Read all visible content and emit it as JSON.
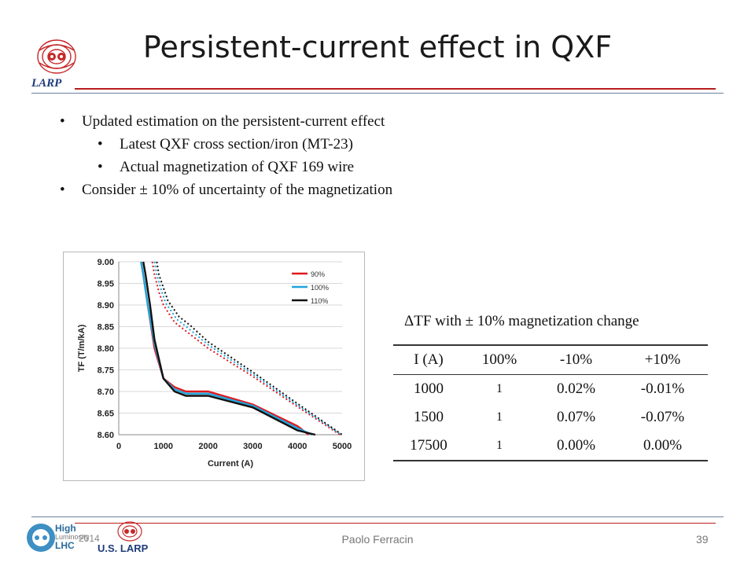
{
  "slide": {
    "title": "Persistent-current effect in QXF",
    "bullets": [
      {
        "level": 1,
        "text": "Updated estimation on the persistent-current effect"
      },
      {
        "level": 2,
        "text": "Latest QXF cross section/iron (MT-23)"
      },
      {
        "level": 2,
        "text": "Actual magnetization of QXF 169 wire"
      },
      {
        "level": 1,
        "text": "Consider ± 10% of uncertainty of the magnetization"
      }
    ],
    "logo_text": "LARP",
    "footer": {
      "author": "Paolo Ferracin",
      "page": "39",
      "date": "2014",
      "hilumi_logo": [
        "High",
        "Luminosity",
        "LHC"
      ],
      "uslarp_logo": "U.S. LARP"
    },
    "accent_color": "#b71c1c",
    "navy_color": "#1d3b7a"
  },
  "table": {
    "caption": "ΔTF with ± 10% magnetization change",
    "headers": [
      "I (A)",
      "100%",
      "-10%",
      "+10%"
    ],
    "rows": [
      [
        "1000",
        "1",
        "0.02%",
        "-0.01%"
      ],
      [
        "1500",
        "1",
        "0.07%",
        "-0.07%"
      ],
      [
        "17500",
        "1",
        "0.00%",
        "0.00%"
      ]
    ]
  },
  "chart_data": {
    "type": "line",
    "xlabel": "Current (A)",
    "ylabel": "TF (T/m/kA)",
    "xlim": [
      0,
      5000
    ],
    "ylim": [
      8.6,
      9.0
    ],
    "xticks": [
      "0",
      "1000",
      "2000",
      "3000",
      "4000",
      "5000"
    ],
    "yticks": [
      "8.60",
      "8.65",
      "8.70",
      "8.75",
      "8.80",
      "8.85",
      "8.90",
      "8.95",
      "9.00"
    ],
    "legend_position": "top-right",
    "series": [
      {
        "name": "90%",
        "color": "#e0191f",
        "style": "solid",
        "x": [
          500,
          550,
          650,
          800,
          1000,
          1250,
          1500,
          2000,
          3000,
          4000,
          4250
        ],
        "y": [
          9.0,
          8.97,
          8.9,
          8.8,
          8.73,
          8.71,
          8.7,
          8.7,
          8.67,
          8.62,
          8.6
        ]
      },
      {
        "name": "100%",
        "color": "#1fa5dc",
        "style": "solid",
        "x": [
          500,
          550,
          650,
          800,
          1000,
          1250,
          1500,
          2000,
          3000,
          4000,
          4330
        ],
        "y": [
          9.0,
          8.97,
          8.9,
          8.81,
          8.73,
          8.705,
          8.695,
          8.695,
          8.667,
          8.615,
          8.6
        ]
      },
      {
        "name": "110%",
        "color": "#111111",
        "style": "solid",
        "x": [
          550,
          600,
          700,
          800,
          1000,
          1250,
          1500,
          2000,
          3000,
          4000,
          4400
        ],
        "y": [
          9.0,
          8.97,
          8.9,
          8.82,
          8.73,
          8.7,
          8.69,
          8.69,
          8.663,
          8.61,
          8.6
        ]
      },
      {
        "name": "90% (dotted)",
        "color": "#e0191f",
        "style": "dotted",
        "x": [
          750,
          800,
          900,
          1000,
          1250,
          1500,
          2000,
          3000,
          4000,
          4950
        ],
        "y": [
          9.0,
          8.97,
          8.93,
          8.9,
          8.86,
          8.84,
          8.8,
          8.735,
          8.665,
          8.6
        ]
      },
      {
        "name": "100% (dotted)",
        "color": "#1fa5dc",
        "style": "dotted",
        "x": [
          800,
          850,
          950,
          1050,
          1300,
          1550,
          2000,
          3000,
          4000,
          4980
        ],
        "y": [
          9.0,
          8.97,
          8.935,
          8.905,
          8.867,
          8.847,
          8.808,
          8.74,
          8.668,
          8.6
        ]
      },
      {
        "name": "110% (dotted)",
        "color": "#111111",
        "style": "dotted",
        "x": [
          850,
          900,
          1000,
          1100,
          1350,
          1600,
          2000,
          3000,
          4000,
          5000
        ],
        "y": [
          9.0,
          8.97,
          8.94,
          8.91,
          8.873,
          8.853,
          8.815,
          8.745,
          8.672,
          8.6
        ]
      }
    ],
    "legend": [
      {
        "label": "90%",
        "color": "#e0191f"
      },
      {
        "label": "100%",
        "color": "#1fa5dc"
      },
      {
        "label": "110%",
        "color": "#111111"
      }
    ]
  }
}
